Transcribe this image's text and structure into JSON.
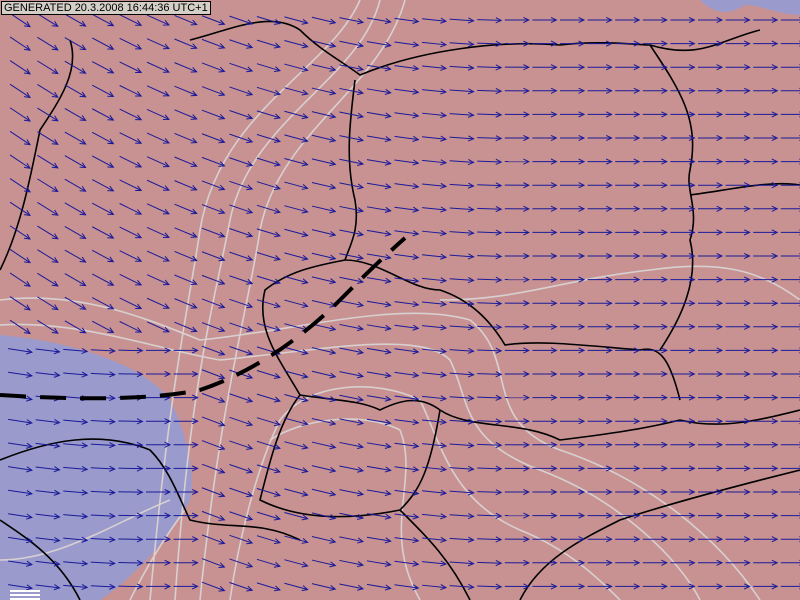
{
  "generated_label": "GENERATED 20.3.2008 16:44:36 UTC+1",
  "colors": {
    "warm_region": "#c89292",
    "cold_region": "#9a9acc",
    "wind_arrow": "#1a1a9a",
    "isoline": "#d8d0d0",
    "border": "#000000",
    "front": "#000000"
  },
  "layers": [
    "temperature-fill",
    "isolines",
    "country-borders",
    "wind-arrows",
    "front-line"
  ],
  "icons": {
    "legend": "legend-icon"
  }
}
